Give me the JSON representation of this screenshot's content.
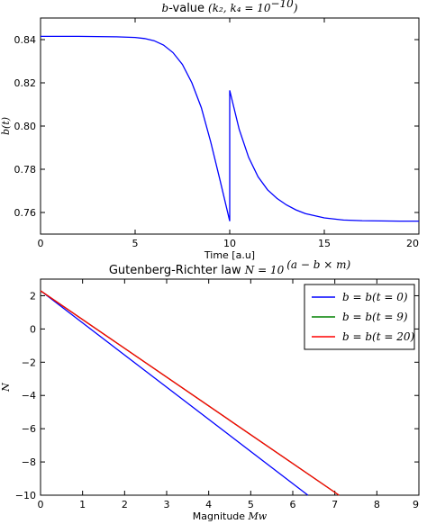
{
  "chart_data": [
    {
      "type": "line",
      "title_prefix": "b",
      "title_main": "-value",
      "title_math": "(k₂, k₄ = 10",
      "title_exp": "−10",
      "title_close": ")",
      "xlabel": "Time [a.u]",
      "ylabel": "b(t)",
      "xlim": [
        0,
        20
      ],
      "ylim": [
        0.75,
        0.85
      ],
      "x_ticks": [
        "0",
        "5",
        "10",
        "15",
        "20"
      ],
      "y_ticks": [
        "0.76",
        "0.78",
        "0.80",
        "0.82",
        "0.84"
      ],
      "grid": false,
      "series": [
        {
          "color": "#0000ff",
          "x": [
            0,
            1,
            2,
            3,
            4,
            5,
            5.5,
            6,
            6.5,
            7,
            7.5,
            8,
            8.5,
            9,
            9.5,
            10,
            10.0001,
            10.5,
            11,
            11.5,
            12,
            12.5,
            13,
            13.5,
            14,
            15,
            16,
            17,
            18,
            19,
            20
          ],
          "y": [
            0.8415,
            0.8415,
            0.8415,
            0.8414,
            0.8413,
            0.841,
            0.8405,
            0.8395,
            0.8375,
            0.834,
            0.8285,
            0.82,
            0.8085,
            0.7925,
            0.7745,
            0.756,
            0.8165,
            0.7985,
            0.7855,
            0.7765,
            0.7705,
            0.7665,
            0.7635,
            0.7612,
            0.7595,
            0.7575,
            0.7565,
            0.7562,
            0.7561,
            0.756,
            0.756
          ]
        }
      ]
    },
    {
      "type": "line",
      "title_text": "Gutenberg-Richter law ",
      "title_math": "N = 10",
      "title_exp": "(a − b × m)",
      "xlabel": "Magnitude ",
      "xlabel_math": "Mw",
      "ylabel": "N",
      "xlim": [
        0,
        9
      ],
      "ylim": [
        -10,
        3
      ],
      "x_ticks": [
        "0",
        "1",
        "2",
        "3",
        "4",
        "5",
        "6",
        "7",
        "8",
        "9"
      ],
      "y_ticks": [
        "−10",
        "−8",
        "−6",
        "−4",
        "−2",
        "0",
        "2"
      ],
      "grid": false,
      "legend_placement": "top-right",
      "series": [
        {
          "name": "b = b(t = 0)",
          "color": "#0000ff",
          "x": [
            0,
            6.36
          ],
          "y": [
            2.3,
            -10
          ]
        },
        {
          "name": "b = b(t = 9)",
          "color": "#008000",
          "x": [
            0,
            7.1
          ],
          "y": [
            2.3,
            -10
          ]
        },
        {
          "name": "b = b(t = 20)",
          "color": "#ff0000",
          "x": [
            0,
            7.1
          ],
          "y": [
            2.3,
            -10
          ]
        }
      ]
    }
  ]
}
